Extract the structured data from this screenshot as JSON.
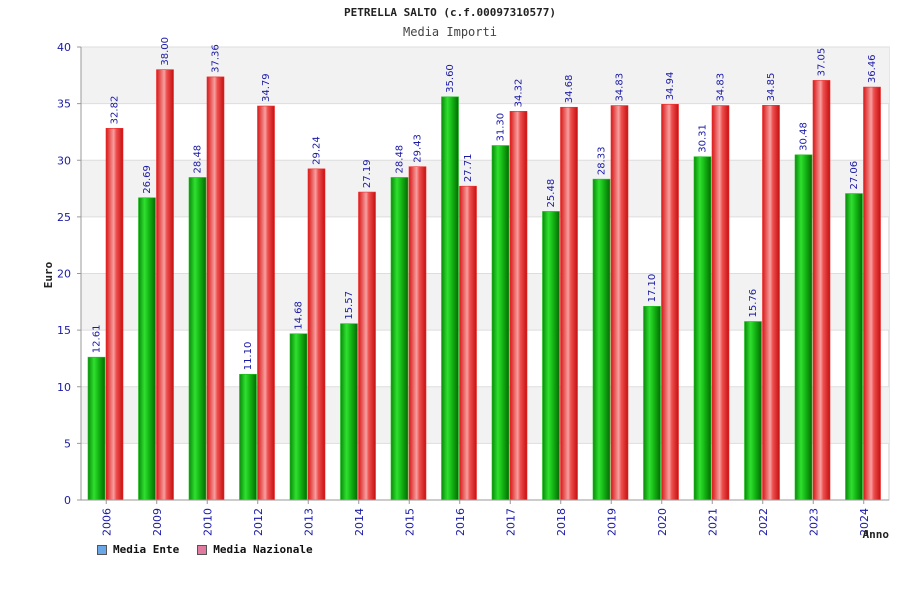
{
  "title": "PETRELLA SALTO (c.f.00097310577)",
  "subtitle": "Media Importi",
  "colors": {
    "ente": "#1fbf1f",
    "nazionale": "#ee2c2c",
    "legend_ente": "#6aa7e8",
    "legend_nazionale": "#e07aa0",
    "band": "#f2f2f2",
    "text": "#1a1aa6"
  },
  "chart_data": {
    "type": "bar",
    "title": "Media Importi",
    "xlabel": "Anno",
    "ylabel": "Euro",
    "ylim": [
      0,
      40
    ],
    "yticks": [
      0,
      5,
      10,
      15,
      20,
      25,
      30,
      35,
      40
    ],
    "grid": true,
    "legend_position": "bottom-left",
    "categories": [
      "2006",
      "2009",
      "2010",
      "2012",
      "2013",
      "2014",
      "2015",
      "2016",
      "2017",
      "2018",
      "2019",
      "2020",
      "2021",
      "2022",
      "2023",
      "2024"
    ],
    "series": [
      {
        "name": "Media Ente",
        "values": [
          12.61,
          26.69,
          28.48,
          11.1,
          14.68,
          15.57,
          28.48,
          35.6,
          31.3,
          25.48,
          28.33,
          17.1,
          30.31,
          15.76,
          30.48,
          27.06
        ],
        "labels": [
          "12.61",
          "26.69",
          "28.48",
          "11.10",
          "14.68",
          "15.57",
          "28.48",
          "35.60",
          "31.30",
          "25.48",
          "28.33",
          "17.10",
          "30.31",
          "15.76",
          "30.48",
          "27.06"
        ]
      },
      {
        "name": "Media Nazionale",
        "values": [
          32.82,
          38.0,
          37.36,
          34.79,
          29.24,
          27.19,
          29.43,
          27.71,
          34.32,
          34.68,
          34.83,
          34.94,
          34.83,
          34.85,
          37.05,
          36.46
        ],
        "labels": [
          "32.82",
          "38.00",
          "37.36",
          "34.79",
          "29.24",
          "27.19",
          "29.43",
          "27.71",
          "34.32",
          "34.68",
          "34.83",
          "34.94",
          "34.83",
          "34.85",
          "37.05",
          "36.46"
        ]
      }
    ]
  }
}
